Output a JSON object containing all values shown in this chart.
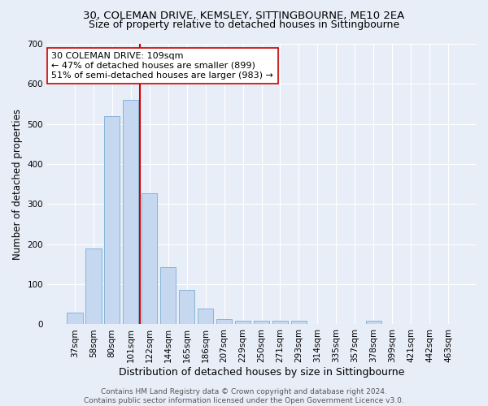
{
  "title_line1": "30, COLEMAN DRIVE, KEMSLEY, SITTINGBOURNE, ME10 2EA",
  "title_line2": "Size of property relative to detached houses in Sittingbourne",
  "xlabel": "Distribution of detached houses by size in Sittingbourne",
  "ylabel": "Number of detached properties",
  "categories": [
    "37sqm",
    "58sqm",
    "80sqm",
    "101sqm",
    "122sqm",
    "144sqm",
    "165sqm",
    "186sqm",
    "207sqm",
    "229sqm",
    "250sqm",
    "271sqm",
    "293sqm",
    "314sqm",
    "335sqm",
    "357sqm",
    "378sqm",
    "399sqm",
    "421sqm",
    "442sqm",
    "463sqm"
  ],
  "values": [
    30,
    190,
    520,
    560,
    328,
    142,
    86,
    40,
    13,
    10,
    9,
    9,
    9,
    0,
    0,
    0,
    9,
    0,
    0,
    0,
    0
  ],
  "bar_color": "#c5d8f0",
  "bar_edge_color": "#7aadd4",
  "vline_x_data": 3.5,
  "vline_color": "#cc0000",
  "annotation_text": "30 COLEMAN DRIVE: 109sqm\n← 47% of detached houses are smaller (899)\n51% of semi-detached houses are larger (983) →",
  "annotation_box_color": "#ffffff",
  "annotation_box_edge": "#cc0000",
  "ylim": [
    0,
    700
  ],
  "yticks": [
    0,
    100,
    200,
    300,
    400,
    500,
    600,
    700
  ],
  "bg_color": "#e8eef8",
  "grid_color": "#ffffff",
  "footer": "Contains HM Land Registry data © Crown copyright and database right 2024.\nContains public sector information licensed under the Open Government Licence v3.0.",
  "title_fontsize": 9.5,
  "subtitle_fontsize": 9,
  "xlabel_fontsize": 9,
  "ylabel_fontsize": 8.5,
  "tick_fontsize": 7.5,
  "annotation_fontsize": 8,
  "footer_fontsize": 6.5
}
